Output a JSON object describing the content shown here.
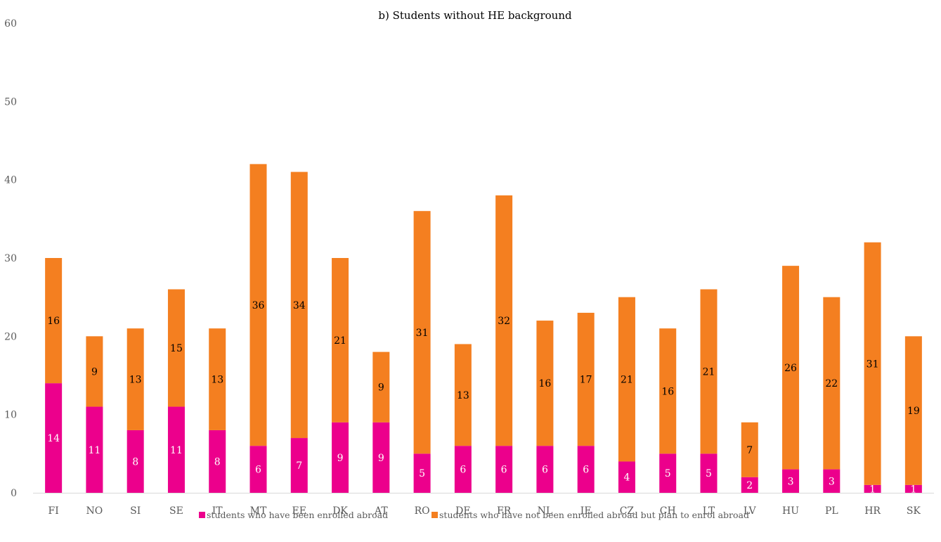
{
  "chart_data": {
    "type": "bar",
    "stacked": true,
    "title": "b) Students without HE background",
    "xlabel": "",
    "ylabel": "",
    "ylim": [
      0,
      60
    ],
    "yticks": [
      0,
      10,
      20,
      30,
      40,
      50,
      60
    ],
    "grid": false,
    "legend_position": "bottom",
    "categories": [
      "FI",
      "NO",
      "SI",
      "SE",
      "IT",
      "MT",
      "EE",
      "DK",
      "AT",
      "RO",
      "DE",
      "FR",
      "NL",
      "IE",
      "CZ",
      "CH",
      "LT",
      "LV",
      "HU",
      "PL",
      "HR",
      "SK"
    ],
    "series": [
      {
        "name": "students who have been enrolled abroad",
        "color": "#ec008c",
        "label_color": "#ffffff",
        "values": [
          14,
          11,
          8,
          11,
          8,
          6,
          7,
          9,
          9,
          5,
          6,
          6,
          6,
          6,
          4,
          5,
          5,
          2,
          3,
          3,
          1,
          1
        ]
      },
      {
        "name": "students who have not been enrolled abroad but plan to enrol abroad",
        "color": "#f47f20",
        "label_color": "#000000",
        "values": [
          16,
          9,
          13,
          15,
          13,
          36,
          34,
          21,
          9,
          31,
          13,
          32,
          16,
          17,
          21,
          16,
          21,
          7,
          26,
          22,
          31,
          19
        ]
      }
    ]
  }
}
